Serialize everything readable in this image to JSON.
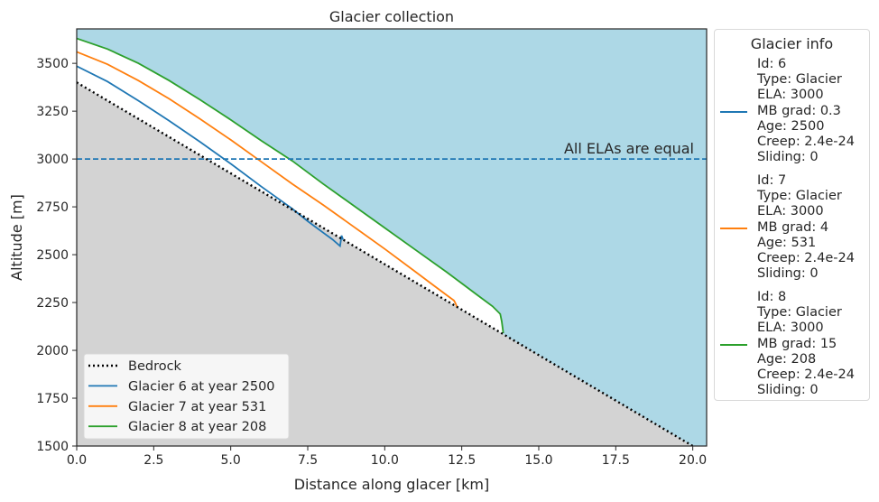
{
  "chart_data": {
    "type": "line",
    "title": "Glacier collection",
    "xlabel": "Distance along glacer [km]",
    "ylabel": "Altitude [m]",
    "xlim": [
      0,
      20.45
    ],
    "ylim": [
      1500,
      3680
    ],
    "xticks": [
      "0.0",
      "2.5",
      "5.0",
      "7.5",
      "10.0",
      "12.5",
      "15.0",
      "17.5",
      "20.0"
    ],
    "yticks": [
      "1500",
      "1750",
      "2000",
      "2250",
      "2500",
      "2750",
      "3000",
      "3250",
      "3500"
    ],
    "grid": false,
    "background_color": "#add8e6",
    "ground_color": "#d3d3d3",
    "bedrock": {
      "name": "Bedrock",
      "color": "#000000",
      "style": "dotted",
      "x": [
        0,
        20
      ],
      "y": [
        3400,
        1500
      ]
    },
    "ela_line": {
      "value": 3000,
      "color": "#1f77b4",
      "style": "dashed",
      "annotation": "All ELAs are equal"
    },
    "series": [
      {
        "name": "Glacier 6 at year 2500",
        "color": "#1f77b4",
        "x": [
          0,
          1,
          2,
          3,
          4,
          5,
          6,
          7,
          7.5,
          8,
          8.3,
          8.55,
          8.6,
          8.65
        ],
        "y": [
          3485,
          3405,
          3305,
          3200,
          3090,
          2975,
          2855,
          2740,
          2675,
          2615,
          2580,
          2545,
          2600,
          2578
        ]
      },
      {
        "name": "Glacier 7 at year 531",
        "color": "#ff7f0e",
        "x": [
          0,
          1,
          2,
          3,
          4,
          5,
          6,
          7,
          8,
          9,
          10,
          11,
          11.5,
          12,
          12.25,
          12.3,
          12.35
        ],
        "y": [
          3560,
          3495,
          3410,
          3315,
          3210,
          3100,
          2985,
          2870,
          2760,
          2645,
          2530,
          2410,
          2350,
          2290,
          2260,
          2245,
          2225
        ]
      },
      {
        "name": "Glacier 8 at year 208",
        "color": "#2ca02c",
        "x": [
          0,
          1,
          2,
          3,
          4,
          5,
          6,
          7,
          8,
          9,
          10,
          11,
          12,
          12.5,
          13,
          13.5,
          13.75,
          13.8,
          13.85
        ],
        "y": [
          3630,
          3575,
          3500,
          3410,
          3310,
          3205,
          3095,
          2990,
          2870,
          2755,
          2640,
          2525,
          2410,
          2350,
          2290,
          2230,
          2190,
          2150,
          2090
        ]
      }
    ],
    "legend": {
      "placement": "lower-left",
      "entries": [
        "Bedrock",
        "Glacier 6 at year 2500",
        "Glacier 7 at year 531",
        "Glacier 8 at year 208"
      ]
    }
  },
  "glacier_info": {
    "title": "Glacier info",
    "entries": [
      {
        "color": "#1f77b4",
        "lines": [
          "Id: 6",
          "Type: Glacier",
          "ELA: 3000",
          "MB grad: 0.3",
          "Age: 2500",
          "Creep: 2.4e-24",
          "Sliding: 0"
        ]
      },
      {
        "color": "#ff7f0e",
        "lines": [
          "Id: 7",
          "Type: Glacier",
          "ELA: 3000",
          "MB grad: 4",
          "Age: 531",
          "Creep: 2.4e-24",
          "Sliding: 0"
        ]
      },
      {
        "color": "#2ca02c",
        "lines": [
          "Id: 8",
          "Type: Glacier",
          "ELA: 3000",
          "MB grad: 15",
          "Age: 208",
          "Creep: 2.4e-24",
          "Sliding: 0"
        ]
      }
    ]
  }
}
